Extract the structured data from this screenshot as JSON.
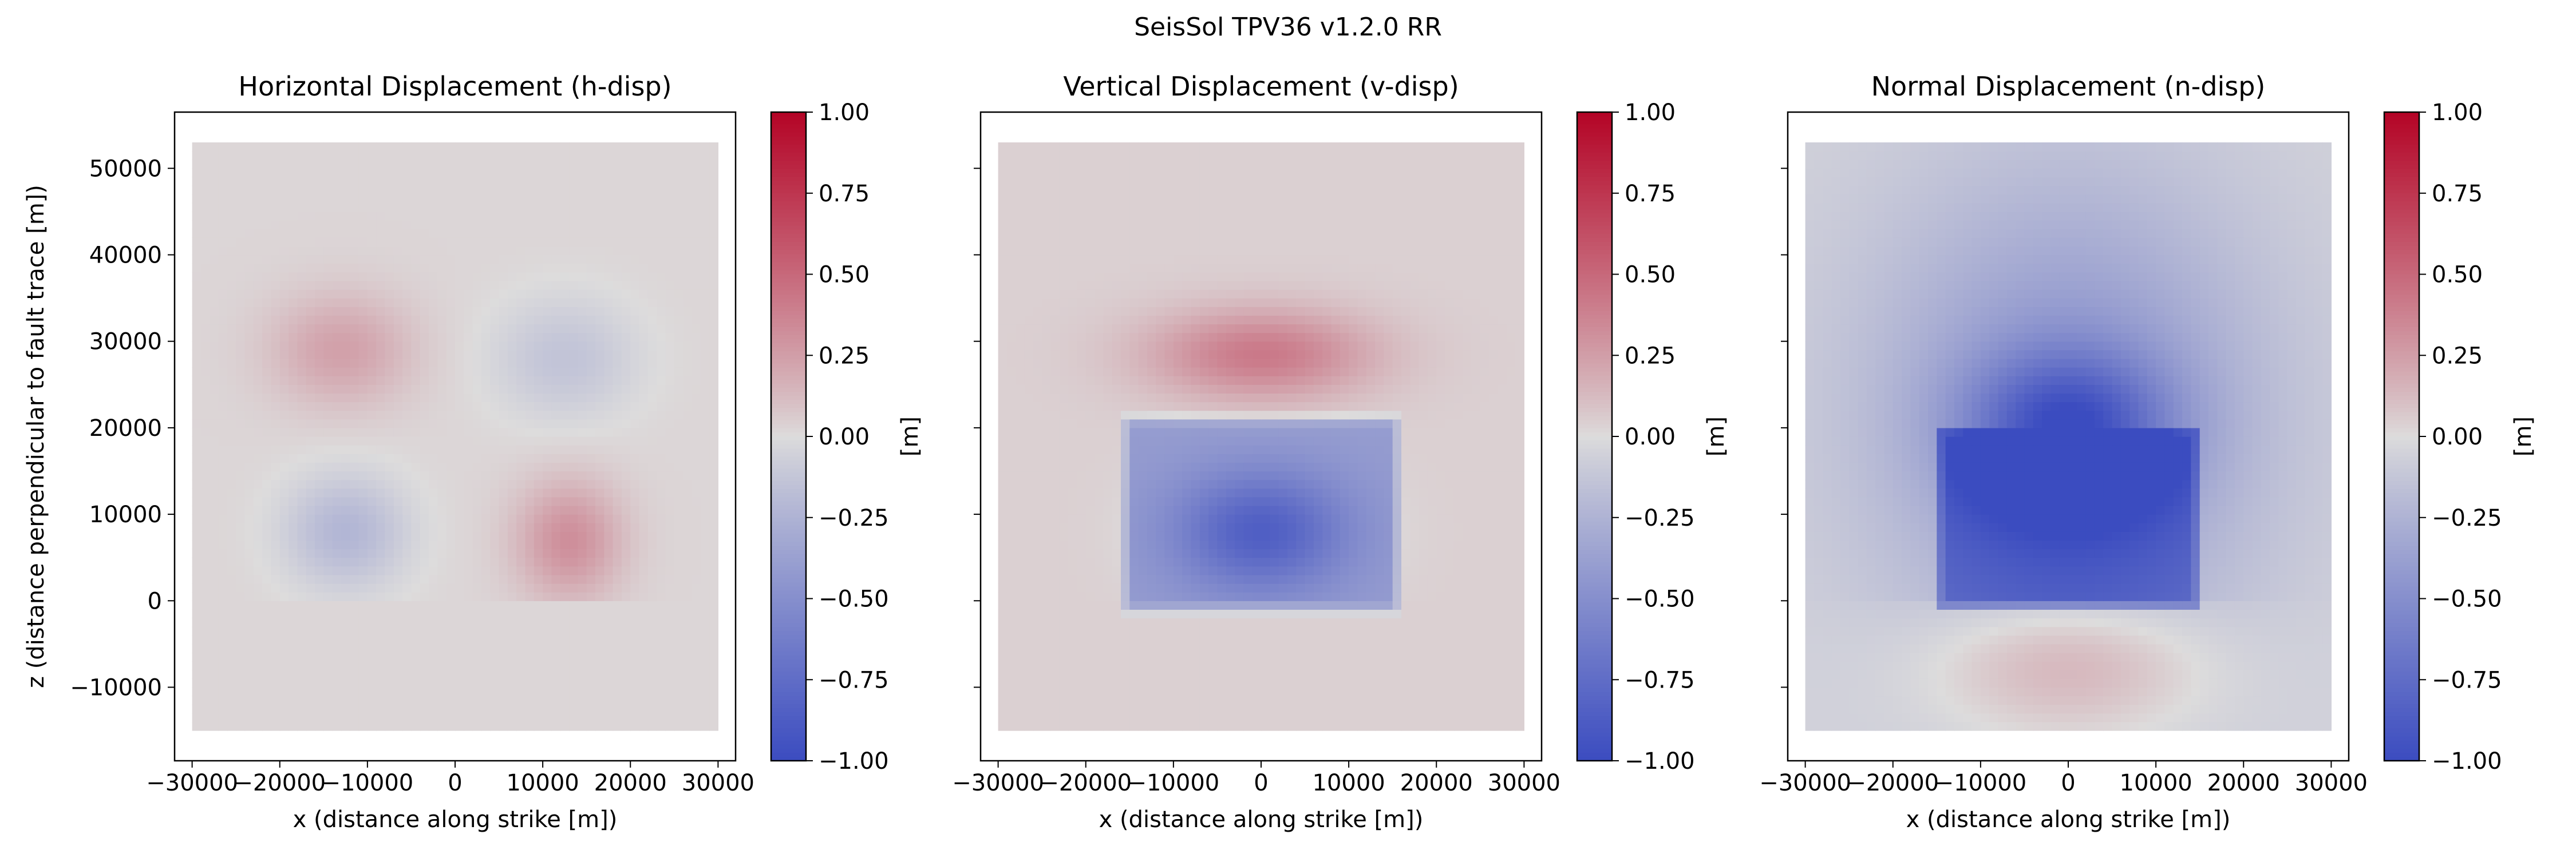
{
  "figure": {
    "title": "SeisSol TPV36 v1.2.0 RR"
  },
  "chart_data": {
    "shared": {
      "xticks": [
        -30000,
        -20000,
        -10000,
        0,
        10000,
        20000,
        30000
      ],
      "xtick_labels": [
        "−30000",
        "−20000",
        "−10000",
        "0",
        "10000",
        "20000",
        "30000"
      ],
      "yticks": [
        -10000,
        0,
        10000,
        20000,
        30000,
        40000,
        50000
      ],
      "ytick_labels": [
        "−10000",
        "0",
        "10000",
        "20000",
        "30000",
        "40000",
        "50000"
      ],
      "xlim": [
        -32000,
        32000
      ],
      "ylim": [
        -18500,
        56500
      ],
      "data_extent_x": [
        -30000,
        30000
      ],
      "data_extent_y": [
        -15000,
        53000
      ],
      "colorbar": {
        "colormap": "coolwarm",
        "range": [
          -1.0,
          1.0
        ],
        "ticks": [
          1.0,
          0.75,
          0.5,
          0.25,
          0.0,
          -0.25,
          -0.5,
          -0.75,
          -1.0
        ],
        "tick_labels": [
          "1.00",
          "0.75",
          "0.50",
          "0.25",
          "0.00",
          "−0.25",
          "−0.50",
          "−0.75",
          "−1.00"
        ],
        "label": "[m]",
        "colors": {
          "low": "#3b4cc0",
          "mid": "#dddcdc",
          "high": "#b40426"
        }
      }
    },
    "panels": [
      {
        "type": "heatmap",
        "title": "Horizontal Displacement (h-disp)",
        "xlabel": "x (distance along strike [m])",
        "ylabel": "z (distance perpendicular to fault trace [m])",
        "background": 0.02,
        "features": [
          {
            "shape": "blob",
            "cx": -13000,
            "cy": 29000,
            "rx": 10000,
            "ry": 8000,
            "value": 0.22
          },
          {
            "shape": "blob",
            "cx": 12500,
            "cy": 28000,
            "rx": 10000,
            "ry": 8500,
            "value": -0.16
          },
          {
            "shape": "blob",
            "cx": -12500,
            "cy": 8000,
            "rx": 8500,
            "ry": 8000,
            "value": -0.25,
            "clip_below": 0
          },
          {
            "shape": "blob",
            "cx": 13000,
            "cy": 7000,
            "rx": 7500,
            "ry": 8500,
            "value": 0.3,
            "clip_below": 0
          }
        ]
      },
      {
        "type": "heatmap",
        "title": "Vertical Displacement (v-disp)",
        "xlabel": "x (distance along strike [m])",
        "ylabel": "",
        "background": 0.04,
        "features": [
          {
            "shape": "blob",
            "cx": 0,
            "cy": 28500,
            "rx": 16000,
            "ry": 6500,
            "value": 0.38
          },
          {
            "shape": "rect",
            "x0": -14500,
            "x1": 14500,
            "y0": 0,
            "y1": 20000,
            "value": -0.45,
            "edge": 2000
          },
          {
            "shape": "blob",
            "cx": 0,
            "cy": 8000,
            "rx": 12000,
            "ry": 8500,
            "value": -0.45,
            "clip_below": 0
          }
        ]
      },
      {
        "type": "heatmap",
        "title": "Normal Displacement (n-disp)",
        "xlabel": "x (distance along strike [m])",
        "ylabel": "",
        "background": -0.05,
        "features": [
          {
            "shape": "blob",
            "cx": 0,
            "cy": 22000,
            "rx": 28000,
            "ry": 34000,
            "value": -0.4
          },
          {
            "shape": "rect",
            "x0": -14000,
            "x1": 14000,
            "y0": 0,
            "y1": 19000,
            "value": -0.6,
            "edge": 1500
          },
          {
            "shape": "blob",
            "cx": 0,
            "cy": 20000,
            "rx": 14000,
            "ry": 10500,
            "value": -0.6
          },
          {
            "shape": "blob",
            "cx": 0,
            "cy": -7000,
            "rx": 20000,
            "ry": 11000,
            "value": 0.3,
            "clip_above": 0
          }
        ],
        "floor": -1.0
      }
    ]
  }
}
